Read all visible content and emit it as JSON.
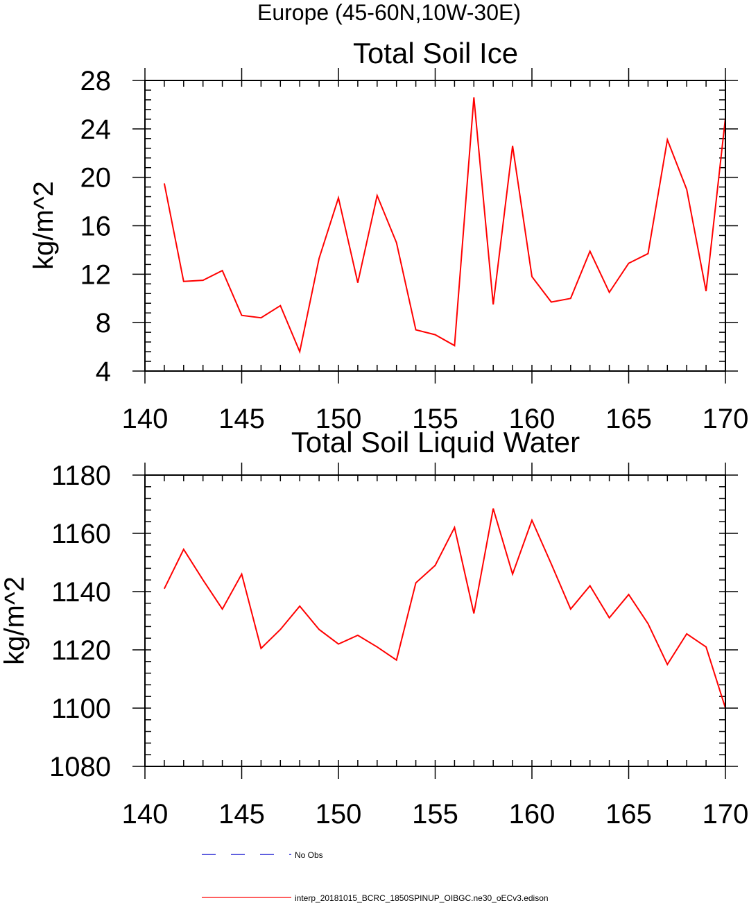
{
  "page_title": "Europe (45-60N,10W-30E)",
  "chart_data": [
    {
      "type": "line",
      "title": "Total Soil Ice",
      "xlabel": "",
      "ylabel": "kg/m^2",
      "xlim": [
        140,
        170
      ],
      "ylim": [
        4,
        28
      ],
      "x_ticks": [
        140,
        145,
        150,
        155,
        160,
        165,
        170
      ],
      "y_ticks": [
        4,
        8,
        12,
        16,
        20,
        24,
        28
      ],
      "x_minor_step": 1,
      "y_minor_step": 0.8,
      "series": [
        {
          "name": "interp_20181015_BCRC_1850SPINUP_OIBGC.ne30_oECv3.edison",
          "color": "#ff0000",
          "x": [
            141,
            142,
            143,
            144,
            145,
            146,
            147,
            148,
            149,
            150,
            151,
            152,
            153,
            154,
            155,
            156,
            157,
            158,
            159,
            160,
            161,
            162,
            163,
            164,
            165,
            166,
            167,
            168,
            169,
            170
          ],
          "values": [
            19.5,
            11.4,
            11.5,
            12.3,
            8.6,
            8.4,
            9.4,
            5.6,
            13.3,
            18.3,
            11.3,
            18.5,
            14.6,
            7.4,
            7.0,
            6.1,
            26.6,
            9.5,
            22.6,
            11.8,
            9.7,
            10.0,
            13.9,
            10.5,
            12.9,
            13.7,
            23.1,
            19.0,
            10.6,
            24.9
          ]
        }
      ]
    },
    {
      "type": "line",
      "title": "Total Soil Liquid Water",
      "xlabel": "",
      "ylabel": "kg/m^2",
      "xlim": [
        140,
        170
      ],
      "ylim": [
        1080,
        1180
      ],
      "x_ticks": [
        140,
        145,
        150,
        155,
        160,
        165,
        170
      ],
      "y_ticks": [
        1080,
        1100,
        1120,
        1140,
        1160,
        1180
      ],
      "x_minor_step": 1,
      "y_minor_step": 4,
      "series": [
        {
          "name": "interp_20181015_BCRC_1850SPINUP_OIBGC.ne30_oECv3.edison",
          "color": "#ff0000",
          "x": [
            141,
            142,
            143,
            144,
            145,
            146,
            147,
            148,
            149,
            150,
            151,
            152,
            153,
            154,
            155,
            156,
            157,
            158,
            159,
            160,
            161,
            162,
            163,
            164,
            165,
            166,
            167,
            168,
            169,
            170
          ],
          "values": [
            1141,
            1154.5,
            1144,
            1134,
            1146,
            1120.5,
            1127,
            1135,
            1127,
            1122,
            1125,
            1121,
            1116.5,
            1143,
            1149,
            1162,
            1132.5,
            1168.5,
            1146,
            1164.5,
            1149.5,
            1134,
            1142,
            1131,
            1139,
            1129,
            1115,
            1125.5,
            1121,
            1100
          ]
        }
      ]
    }
  ],
  "legend": [
    {
      "label": "No Obs",
      "color": "#0000cc",
      "style": "dashed"
    },
    {
      "label": "interp_20181015_BCRC_1850SPINUP_OIBGC.ne30_oECv3.edison",
      "color": "#ff0000",
      "style": "solid"
    }
  ]
}
